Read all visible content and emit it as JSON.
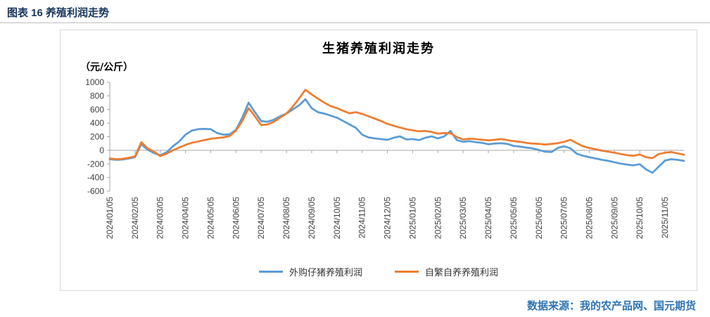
{
  "page": {
    "figure_caption": "图表 16 养殖利润走势",
    "source_note": "数据来源：我的农产品网、国元期货"
  },
  "colors": {
    "caption_text": "#17365D",
    "source_text": "#2E74B5",
    "axis": "#A6A6A6",
    "chart_border": "#D9D9D9",
    "tick_text": "#3F3F3F",
    "series_blue": "#5B9BD5",
    "series_orange": "#ED7D31"
  },
  "chart_data": {
    "type": "line",
    "title": "生猪养殖利润走势",
    "y_axis_label": "（元/公斤）",
    "ylim": [
      -600,
      1000
    ],
    "y_ticks": [
      1000,
      800,
      600,
      400,
      200,
      0,
      -200,
      -400,
      -600
    ],
    "x_tick_labels": [
      "2024/01/05",
      "2024/02/05",
      "2024/03/05",
      "2024/04/05",
      "2024/05/05",
      "2024/06/05",
      "2024/07/05",
      "2024/08/05",
      "2024/09/05",
      "2024/10/05",
      "2024/11/05",
      "2024/12/05",
      "2025/01/05",
      "2025/02/05",
      "2025/03/05",
      "2025/04/05",
      "2025/05/05",
      "2025/06/05",
      "2025/07/05",
      "2025/08/05",
      "2025/09/05",
      "2025/10/05",
      "2025/11/05"
    ],
    "points_per_tick": 4,
    "grid": false,
    "legend_position": "bottom",
    "series": [
      {
        "name": "外购仔猪养殖利润",
        "color": "#5B9BD5",
        "values": [
          -130,
          -140,
          -135,
          -120,
          -100,
          90,
          10,
          -40,
          -70,
          -30,
          60,
          130,
          230,
          290,
          310,
          315,
          310,
          255,
          230,
          235,
          300,
          480,
          700,
          560,
          430,
          420,
          450,
          500,
          540,
          600,
          660,
          750,
          620,
          560,
          540,
          510,
          480,
          430,
          380,
          330,
          230,
          190,
          175,
          165,
          155,
          185,
          205,
          160,
          165,
          150,
          185,
          205,
          175,
          205,
          285,
          150,
          125,
          135,
          120,
          110,
          90,
          100,
          105,
          95,
          65,
          55,
          40,
          30,
          5,
          -20,
          -25,
          35,
          60,
          30,
          -50,
          -80,
          -100,
          -120,
          -140,
          -155,
          -175,
          -195,
          -210,
          -220,
          -205,
          -280,
          -330,
          -240,
          -150,
          -130,
          -140,
          -155
        ]
      },
      {
        "name": "自繁自养养殖利润",
        "color": "#ED7D31",
        "values": [
          -120,
          -130,
          -125,
          -110,
          -90,
          120,
          30,
          -20,
          -85,
          -50,
          0,
          40,
          80,
          110,
          130,
          150,
          170,
          180,
          190,
          210,
          290,
          430,
          620,
          500,
          370,
          380,
          420,
          480,
          540,
          640,
          760,
          890,
          820,
          760,
          700,
          650,
          620,
          580,
          545,
          560,
          535,
          500,
          465,
          430,
          390,
          360,
          335,
          310,
          295,
          280,
          285,
          270,
          245,
          255,
          250,
          195,
          160,
          170,
          165,
          155,
          145,
          155,
          165,
          150,
          135,
          125,
          110,
          100,
          95,
          85,
          95,
          105,
          125,
          155,
          105,
          60,
          35,
          15,
          -5,
          -20,
          -35,
          -55,
          -70,
          -80,
          -60,
          -100,
          -115,
          -55,
          -35,
          -25,
          -45,
          -65
        ]
      }
    ]
  }
}
